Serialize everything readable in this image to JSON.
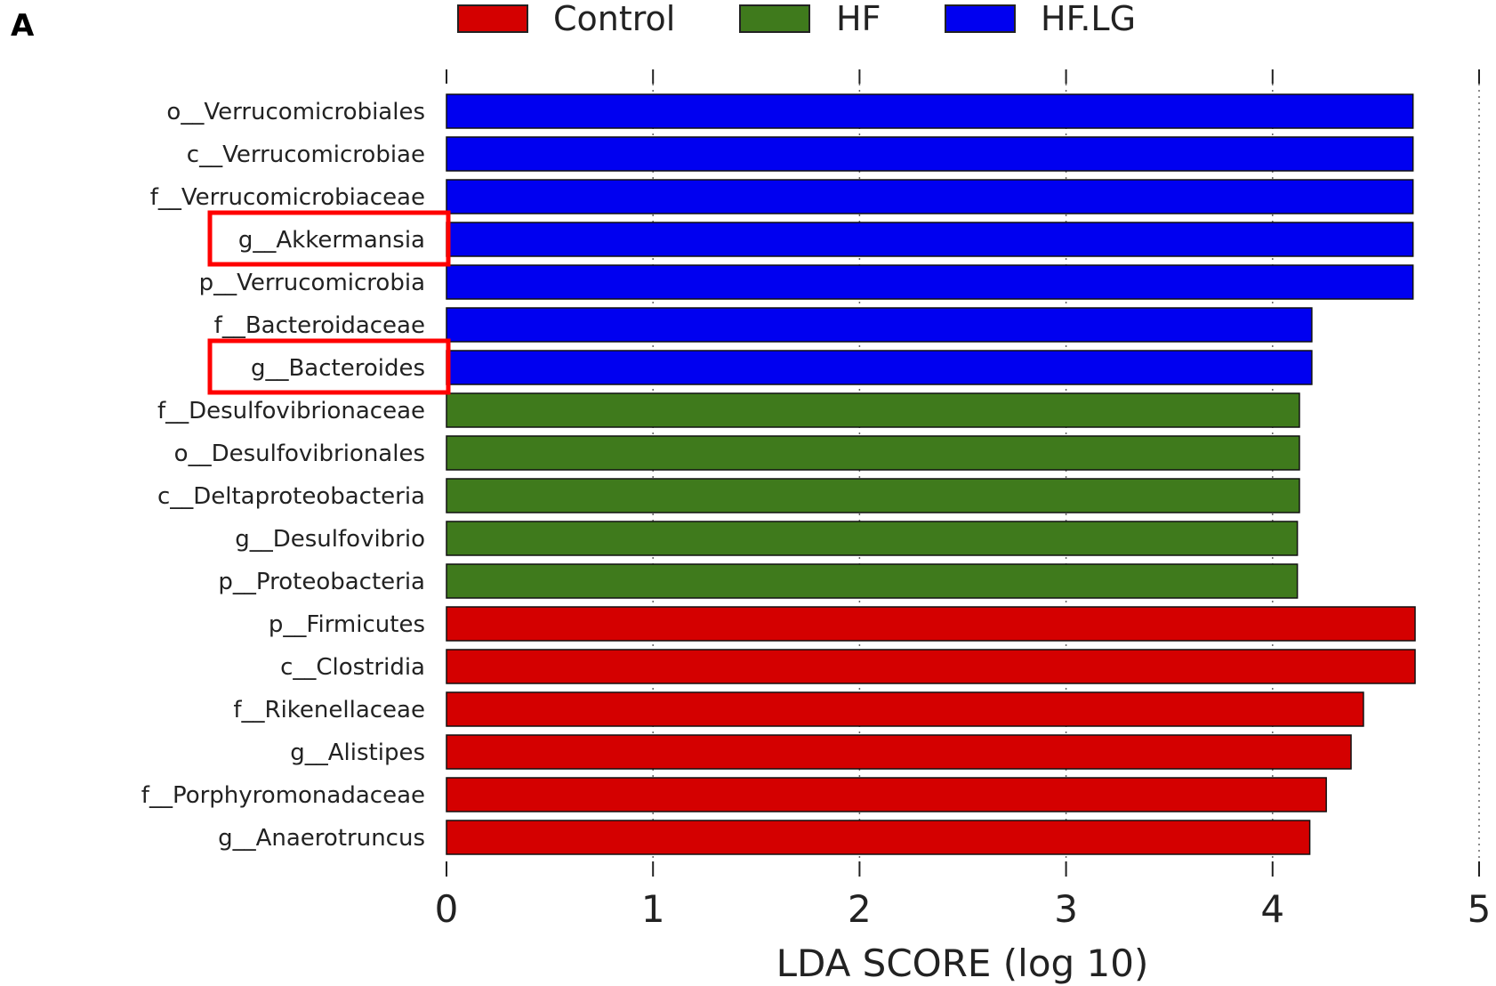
{
  "chart_data": {
    "type": "bar",
    "orientation": "horizontal",
    "panel_label": "A",
    "title": "",
    "xlabel": "LDA SCORE (log 10)",
    "ylabel": "",
    "xlim": [
      0,
      5
    ],
    "xticks": [
      "0",
      "1",
      "2",
      "3",
      "4",
      "5"
    ],
    "grid": true,
    "legend_placement": "top-center",
    "legend": [
      {
        "name": "Control",
        "color": "#d40000"
      },
      {
        "name": "HF",
        "color": "#3f7a1c"
      },
      {
        "name": "HF.LG",
        "color": "#0000f0"
      }
    ],
    "categories": [
      "o__Verrucomicrobiales",
      "c__Verrucomicrobiae",
      "f__Verrucomicrobiaceae",
      "g__Akkermansia",
      "p__Verrucomicrobia",
      "f__Bacteroidaceae",
      "g__Bacteroides",
      "f__Desulfovibrionaceae",
      "o__Desulfovibrionales",
      "c__Deltaproteobacteria",
      "g__Desulfovibrio",
      "p__Proteobacteria",
      "p__Firmicutes",
      "c__Clostridia",
      "f__Rikenellaceae",
      "g__Alistipes",
      "f__Porphyromonadaceae",
      "g__Anaerotruncus"
    ],
    "values": [
      4.68,
      4.68,
      4.68,
      4.68,
      4.68,
      4.19,
      4.19,
      4.13,
      4.13,
      4.13,
      4.12,
      4.12,
      4.69,
      4.69,
      4.44,
      4.38,
      4.26,
      4.18
    ],
    "groups": [
      "HF.LG",
      "HF.LG",
      "HF.LG",
      "HF.LG",
      "HF.LG",
      "HF.LG",
      "HF.LG",
      "HF",
      "HF",
      "HF",
      "HF",
      "HF",
      "Control",
      "Control",
      "Control",
      "Control",
      "Control",
      "Control"
    ],
    "highlighted": [
      "g__Akkermansia",
      "g__Bacteroides"
    ],
    "highlight_color": "#ff0000"
  }
}
